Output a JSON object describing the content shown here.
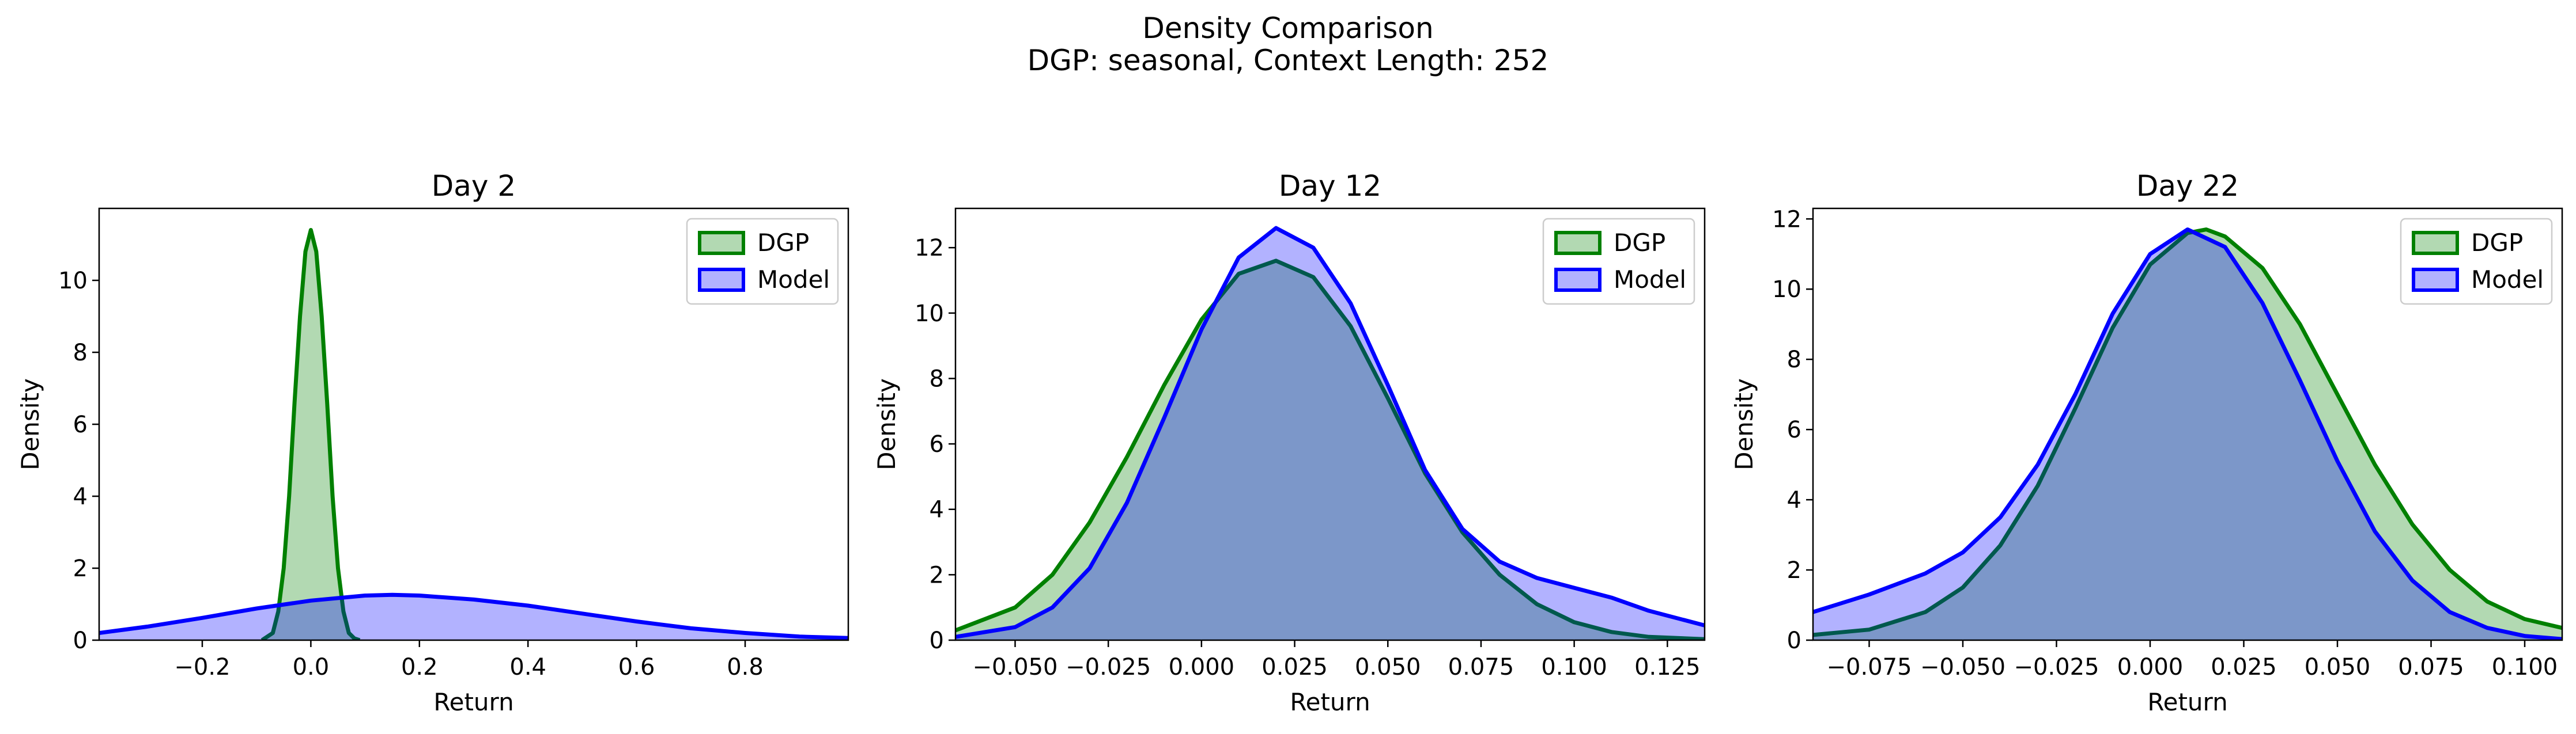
{
  "figure": {
    "suptitle_line1": "Density Comparison",
    "suptitle_line2": "DGP: seasonal, Context Length: 252"
  },
  "colors": {
    "dgp_line": "#008000",
    "dgp_fill": "rgba(0,128,0,0.3)",
    "model_line": "#0000ff",
    "model_fill": "rgba(0,0,255,0.3)"
  },
  "chart_data": [
    {
      "type": "area",
      "title": "Day 2",
      "xlabel": "Return",
      "ylabel": "Density",
      "xlim": [
        -0.39,
        0.99
      ],
      "ylim": [
        0,
        12
      ],
      "xticks": [
        -0.2,
        0.0,
        0.2,
        0.4,
        0.6,
        0.8
      ],
      "xtick_labels": [
        "−0.2",
        "0.0",
        "0.2",
        "0.4",
        "0.6",
        "0.8"
      ],
      "yticks": [
        0,
        2,
        4,
        6,
        8,
        10
      ],
      "ytick_labels": [
        "0",
        "2",
        "4",
        "6",
        "8",
        "10"
      ],
      "legend": {
        "position": "top-right",
        "entries": [
          "DGP",
          "Model"
        ]
      },
      "series": [
        {
          "name": "DGP",
          "x": [
            -0.09,
            -0.07,
            -0.06,
            -0.05,
            -0.04,
            -0.03,
            -0.02,
            -0.01,
            0.0,
            0.01,
            0.02,
            0.03,
            0.04,
            0.05,
            0.06,
            0.07,
            0.08,
            0.09
          ],
          "y": [
            0.0,
            0.2,
            0.8,
            2.0,
            4.0,
            6.6,
            9.0,
            10.8,
            11.4,
            10.8,
            9.0,
            6.6,
            4.0,
            2.0,
            0.8,
            0.2,
            0.05,
            0.0
          ]
        },
        {
          "name": "Model",
          "x": [
            -0.39,
            -0.3,
            -0.2,
            -0.1,
            0.0,
            0.1,
            0.15,
            0.2,
            0.3,
            0.4,
            0.5,
            0.6,
            0.7,
            0.8,
            0.9,
            0.99
          ],
          "y": [
            0.2,
            0.38,
            0.62,
            0.88,
            1.1,
            1.24,
            1.26,
            1.24,
            1.13,
            0.96,
            0.74,
            0.52,
            0.33,
            0.2,
            0.1,
            0.06
          ]
        }
      ]
    },
    {
      "type": "area",
      "title": "Day 12",
      "xlabel": "Return",
      "ylabel": "Density",
      "xlim": [
        -0.066,
        0.135
      ],
      "ylim": [
        0,
        13.2
      ],
      "xticks": [
        -0.05,
        -0.025,
        0.0,
        0.025,
        0.05,
        0.075,
        0.1,
        0.125
      ],
      "xtick_labels": [
        "−0.050",
        "−0.025",
        "0.000",
        "0.025",
        "0.050",
        "0.075",
        "0.100",
        "0.125"
      ],
      "yticks": [
        0,
        2,
        4,
        6,
        8,
        10,
        12
      ],
      "ytick_labels": [
        "0",
        "2",
        "4",
        "6",
        "8",
        "10",
        "12"
      ],
      "legend": {
        "position": "top-right",
        "entries": [
          "DGP",
          "Model"
        ]
      },
      "series": [
        {
          "name": "DGP",
          "x": [
            -0.066,
            -0.05,
            -0.04,
            -0.03,
            -0.02,
            -0.01,
            0.0,
            0.01,
            0.02,
            0.03,
            0.04,
            0.05,
            0.06,
            0.07,
            0.08,
            0.09,
            0.1,
            0.11,
            0.12,
            0.135
          ],
          "y": [
            0.3,
            1.0,
            2.0,
            3.6,
            5.6,
            7.8,
            9.8,
            11.2,
            11.6,
            11.1,
            9.6,
            7.4,
            5.1,
            3.3,
            2.0,
            1.1,
            0.55,
            0.25,
            0.1,
            0.03
          ]
        },
        {
          "name": "Model",
          "x": [
            -0.066,
            -0.05,
            -0.04,
            -0.03,
            -0.02,
            -0.01,
            0.0,
            0.01,
            0.02,
            0.03,
            0.04,
            0.05,
            0.06,
            0.07,
            0.08,
            0.09,
            0.1,
            0.11,
            0.12,
            0.135
          ],
          "y": [
            0.1,
            0.4,
            1.0,
            2.2,
            4.2,
            6.8,
            9.5,
            11.7,
            12.6,
            12.0,
            10.3,
            7.8,
            5.2,
            3.4,
            2.4,
            1.9,
            1.6,
            1.3,
            0.9,
            0.45
          ]
        }
      ]
    },
    {
      "type": "area",
      "title": "Day 22",
      "xlabel": "Return",
      "ylabel": "Density",
      "xlim": [
        -0.09,
        0.11
      ],
      "ylim": [
        0,
        12.3
      ],
      "xticks": [
        -0.075,
        -0.05,
        -0.025,
        0.0,
        0.025,
        0.05,
        0.075,
        0.1
      ],
      "xtick_labels": [
        "−0.075",
        "−0.050",
        "−0.025",
        "0.000",
        "0.025",
        "0.050",
        "0.075",
        "0.100"
      ],
      "yticks": [
        0,
        2,
        4,
        6,
        8,
        10,
        12
      ],
      "ytick_labels": [
        "0",
        "2",
        "4",
        "6",
        "8",
        "10",
        "12"
      ],
      "legend": {
        "position": "top-right",
        "entries": [
          "DGP",
          "Model"
        ]
      },
      "series": [
        {
          "name": "DGP",
          "x": [
            -0.09,
            -0.075,
            -0.06,
            -0.05,
            -0.04,
            -0.03,
            -0.02,
            -0.01,
            0.0,
            0.01,
            0.015,
            0.02,
            0.03,
            0.04,
            0.05,
            0.06,
            0.07,
            0.08,
            0.09,
            0.1,
            0.11
          ],
          "y": [
            0.15,
            0.3,
            0.8,
            1.5,
            2.7,
            4.4,
            6.6,
            8.9,
            10.7,
            11.6,
            11.7,
            11.5,
            10.6,
            9.0,
            7.0,
            5.0,
            3.3,
            2.0,
            1.1,
            0.6,
            0.35
          ]
        },
        {
          "name": "Model",
          "x": [
            -0.09,
            -0.075,
            -0.06,
            -0.05,
            -0.04,
            -0.03,
            -0.02,
            -0.01,
            0.0,
            0.01,
            0.02,
            0.03,
            0.04,
            0.05,
            0.06,
            0.07,
            0.08,
            0.09,
            0.1,
            0.11
          ],
          "y": [
            0.8,
            1.3,
            1.9,
            2.5,
            3.5,
            5.0,
            7.0,
            9.3,
            11.0,
            11.7,
            11.2,
            9.6,
            7.4,
            5.1,
            3.1,
            1.7,
            0.8,
            0.35,
            0.12,
            0.03
          ]
        }
      ]
    }
  ]
}
